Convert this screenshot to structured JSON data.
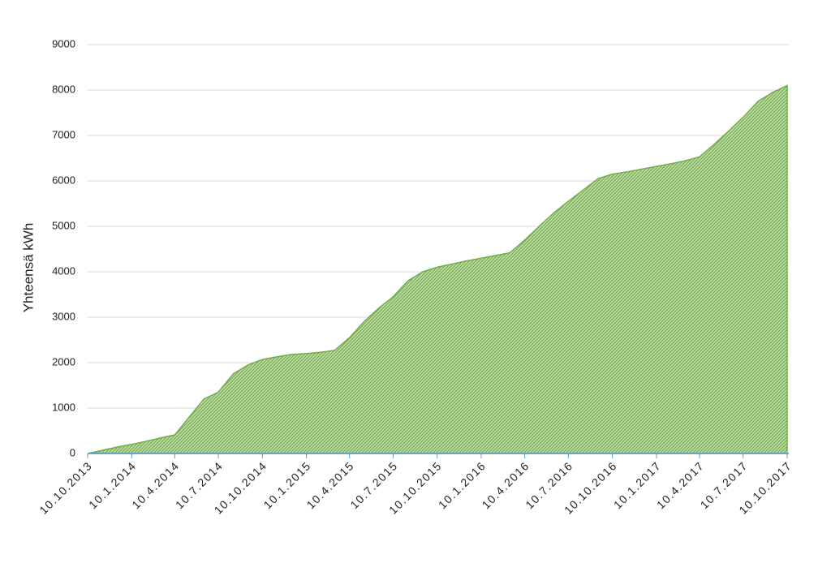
{
  "chart_data": {
    "type": "area",
    "y_label": "Yhteensä kWh",
    "x": [
      "10.10.2013",
      "10.11.2013",
      "10.12.2013",
      "10.1.2014",
      "10.2.2014",
      "10.3.2014",
      "10.4.2014",
      "10.5.2014",
      "10.6.2014",
      "10.7.2014",
      "10.8.2014",
      "10.9.2014",
      "10.10.2014",
      "10.11.2014",
      "10.12.2014",
      "10.1.2015",
      "10.2.2015",
      "10.3.2015",
      "10.4.2015",
      "10.5.2015",
      "10.6.2015",
      "10.7.2015",
      "10.8.2015",
      "10.9.2015",
      "10.10.2015",
      "10.11.2015",
      "10.12.2015",
      "10.1.2016",
      "10.2.2016",
      "10.3.2016",
      "10.4.2016",
      "10.5.2016",
      "10.6.2016",
      "10.7.2016",
      "10.8.2016",
      "10.9.2016",
      "10.10.2016",
      "10.11.2016",
      "10.12.2016",
      "10.1.2017",
      "10.2.2017",
      "10.3.2017",
      "10.4.2017",
      "10.5.2017",
      "10.6.2017",
      "10.7.2017",
      "10.8.2017",
      "10.9.2017",
      "10.10.2017"
    ],
    "values": [
      0,
      70,
      140,
      200,
      270,
      340,
      410,
      800,
      1200,
      1350,
      1750,
      1950,
      2070,
      2130,
      2180,
      2200,
      2230,
      2270,
      2550,
      2900,
      3200,
      3450,
      3800,
      4000,
      4100,
      4170,
      4240,
      4300,
      4360,
      4420,
      4700,
      5000,
      5300,
      5550,
      5800,
      6050,
      6150,
      6200,
      6260,
      6320,
      6380,
      6440,
      6530,
      6800,
      7100,
      7400,
      7750,
      7950,
      8100
    ],
    "color": "#70ad47",
    "xticks": [
      "10.10.2013",
      "10.1.2014",
      "10.4.2014",
      "10.7.2014",
      "10.10.2014",
      "10.1.2015",
      "10.4.2015",
      "10.7.2015",
      "10.10.2015",
      "10.1.2016",
      "10.4.2016",
      "10.7.2016",
      "10.10.2016",
      "10.1.2017",
      "10.4.2017",
      "10.7.2017",
      "10.10.2017"
    ],
    "ylim": [
      0,
      9000
    ],
    "yticks": [
      0,
      1000,
      2000,
      3000,
      4000,
      5000,
      6000,
      7000,
      8000,
      9000
    ],
    "grid": true
  }
}
